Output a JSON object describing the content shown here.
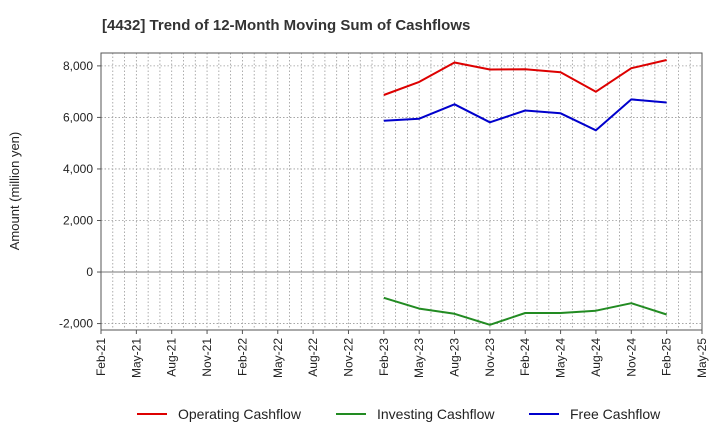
{
  "chart_data": {
    "type": "line",
    "title": "[4432]  Trend of 12-Month Moving Sum of Cashflows",
    "xlabel": "",
    "ylabel": "Amount (million yen)",
    "x_ticks": [
      "Feb-21",
      "May-21",
      "Aug-21",
      "Nov-21",
      "Feb-22",
      "May-22",
      "Aug-22",
      "Nov-22",
      "Feb-23",
      "May-23",
      "Aug-23",
      "Nov-23",
      "Feb-24",
      "May-24",
      "Aug-24",
      "Nov-24",
      "Feb-25",
      "May-25"
    ],
    "y_ticks": [
      -2000,
      0,
      2000,
      4000,
      6000,
      8000
    ],
    "y_tick_labels": [
      "-2,000",
      "0",
      "2,000",
      "4,000",
      "6,000",
      "8,000"
    ],
    "ylim": [
      -2250,
      8500
    ],
    "grid": true,
    "legend_position": "bottom",
    "x": [
      "Feb-23",
      "May-23",
      "Aug-23",
      "Nov-23",
      "Feb-24",
      "May-24",
      "Aug-24",
      "Nov-24",
      "Feb-25"
    ],
    "series": [
      {
        "name": "Operating Cashflow",
        "color": "#dd0000",
        "values": [
          6870,
          7380,
          8130,
          7860,
          7870,
          7750,
          7000,
          7910,
          8230
        ]
      },
      {
        "name": "Investing Cashflow",
        "color": "#228b22",
        "values": [
          -1000,
          -1420,
          -1620,
          -2050,
          -1590,
          -1590,
          -1500,
          -1210,
          -1650
        ]
      },
      {
        "name": "Free Cashflow",
        "color": "#0000cc",
        "values": [
          5870,
          5950,
          6510,
          5810,
          6270,
          6160,
          5500,
          6700,
          6580
        ]
      }
    ]
  }
}
